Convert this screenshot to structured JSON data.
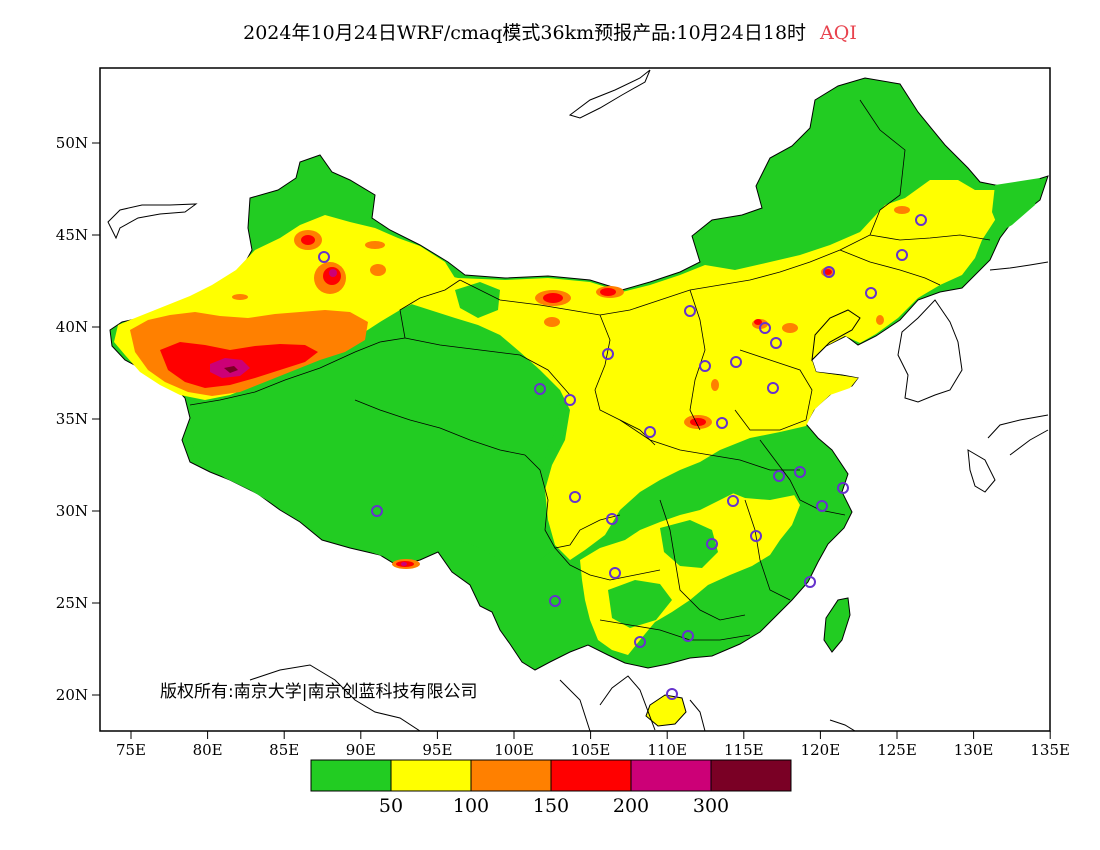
{
  "title": "2024年10月24日WRF/cmaq模式36km预报产品:10月24日18时",
  "variable": "AQI",
  "axes": {
    "lat_ticks": [
      "50N",
      "45N",
      "40N",
      "35N",
      "30N",
      "25N",
      "20N"
    ],
    "lon_ticks": [
      "75E",
      "80E",
      "85E",
      "90E",
      "95E",
      "100E",
      "105E",
      "110E",
      "115E",
      "120E",
      "125E",
      "130E",
      "135E"
    ]
  },
  "copyright": "版权所有:南京大学|南京创蓝科技有限公司",
  "legend": {
    "colors": [
      "#22cc22",
      "#ffff00",
      "#ff8000",
      "#ff0000",
      "#cc0077",
      "#7a0025"
    ],
    "labels": [
      "50",
      "100",
      "150",
      "200",
      "300"
    ]
  },
  "colors": {
    "marker": "#6633cc",
    "boundary": "#000000"
  }
}
